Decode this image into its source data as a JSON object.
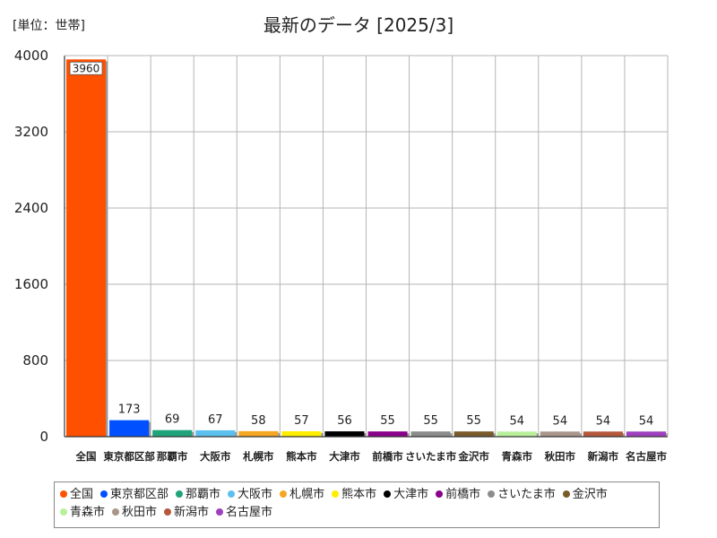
{
  "chart_data": {
    "type": "bar",
    "unit_label": "[単位：世帯]",
    "title": "最新のデータ [2025/3]",
    "categories": [
      "全国",
      "東京都区部",
      "那覇市",
      "大阪市",
      "札幌市",
      "熊本市",
      "大津市",
      "前橋市",
      "さいたま市",
      "金沢市",
      "青森市",
      "秋田市",
      "新潟市",
      "名古屋市"
    ],
    "values": [
      3960,
      173,
      69,
      67,
      58,
      57,
      56,
      55,
      55,
      55,
      54,
      54,
      54,
      54
    ],
    "colors": [
      "#FF5000",
      "#0050FF",
      "#1FA37A",
      "#5CC0EE",
      "#F5A623",
      "#FFEE00",
      "#000000",
      "#8B008B",
      "#8C8C8C",
      "#7A5A2A",
      "#B8F09A",
      "#A8968A",
      "#B5573A",
      "#A040C0"
    ],
    "y_ticks": [
      "0",
      "800",
      "1600",
      "2400",
      "3200",
      "4000"
    ],
    "ylim": [
      0,
      4000
    ],
    "grid": true,
    "legend": "bottom"
  }
}
